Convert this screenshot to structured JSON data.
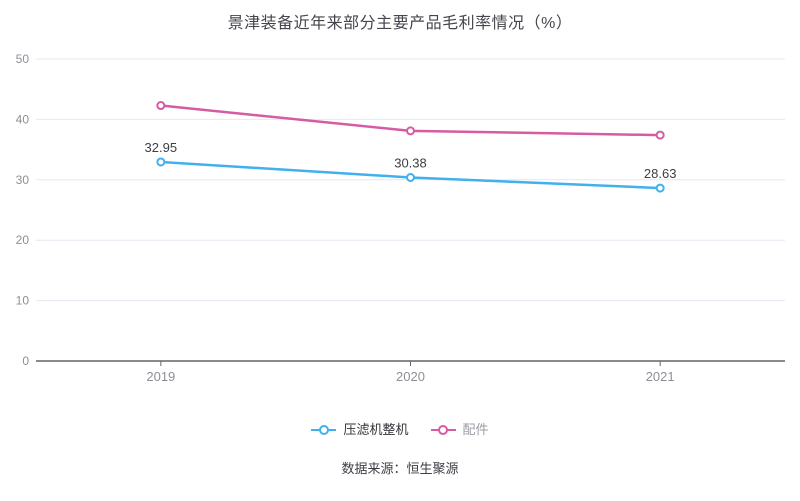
{
  "title": "景津装备近年来部分主要产品毛利率情况（%）",
  "footer": {
    "source_label": "数据来源：恒生聚源"
  },
  "chart_data": {
    "type": "line",
    "title": "景津装备近年来部分主要产品毛利率情况（%）",
    "categories": [
      "2019",
      "2020",
      "2021"
    ],
    "series": [
      {
        "name": "压滤机整机",
        "values": [
          32.95,
          30.38,
          28.63
        ],
        "value_labels": [
          "32.95",
          "30.38",
          "28.63"
        ],
        "show_value_labels": true,
        "color": "#41b0ee",
        "legend_text_color": "#333338"
      },
      {
        "name": "配件",
        "values": [
          42.3,
          38.1,
          37.4
        ],
        "value_labels": [],
        "show_value_labels": false,
        "color": "#d65ba2",
        "legend_text_color": "#9b9ba3"
      }
    ],
    "xlabel": "",
    "ylabel": "",
    "ylim": [
      0,
      50
    ],
    "yticks": [
      0,
      10,
      20,
      30,
      40,
      50
    ],
    "grid": true,
    "legend_position": "bottom",
    "marker": "hollow-circle",
    "colors": {
      "background": "#ffffff",
      "grid_line": "#e2e8f2",
      "axis_line": "#61646c",
      "tick_label": "#8e8f96",
      "value_label": "#3d3d45",
      "title": "#45454d"
    }
  }
}
